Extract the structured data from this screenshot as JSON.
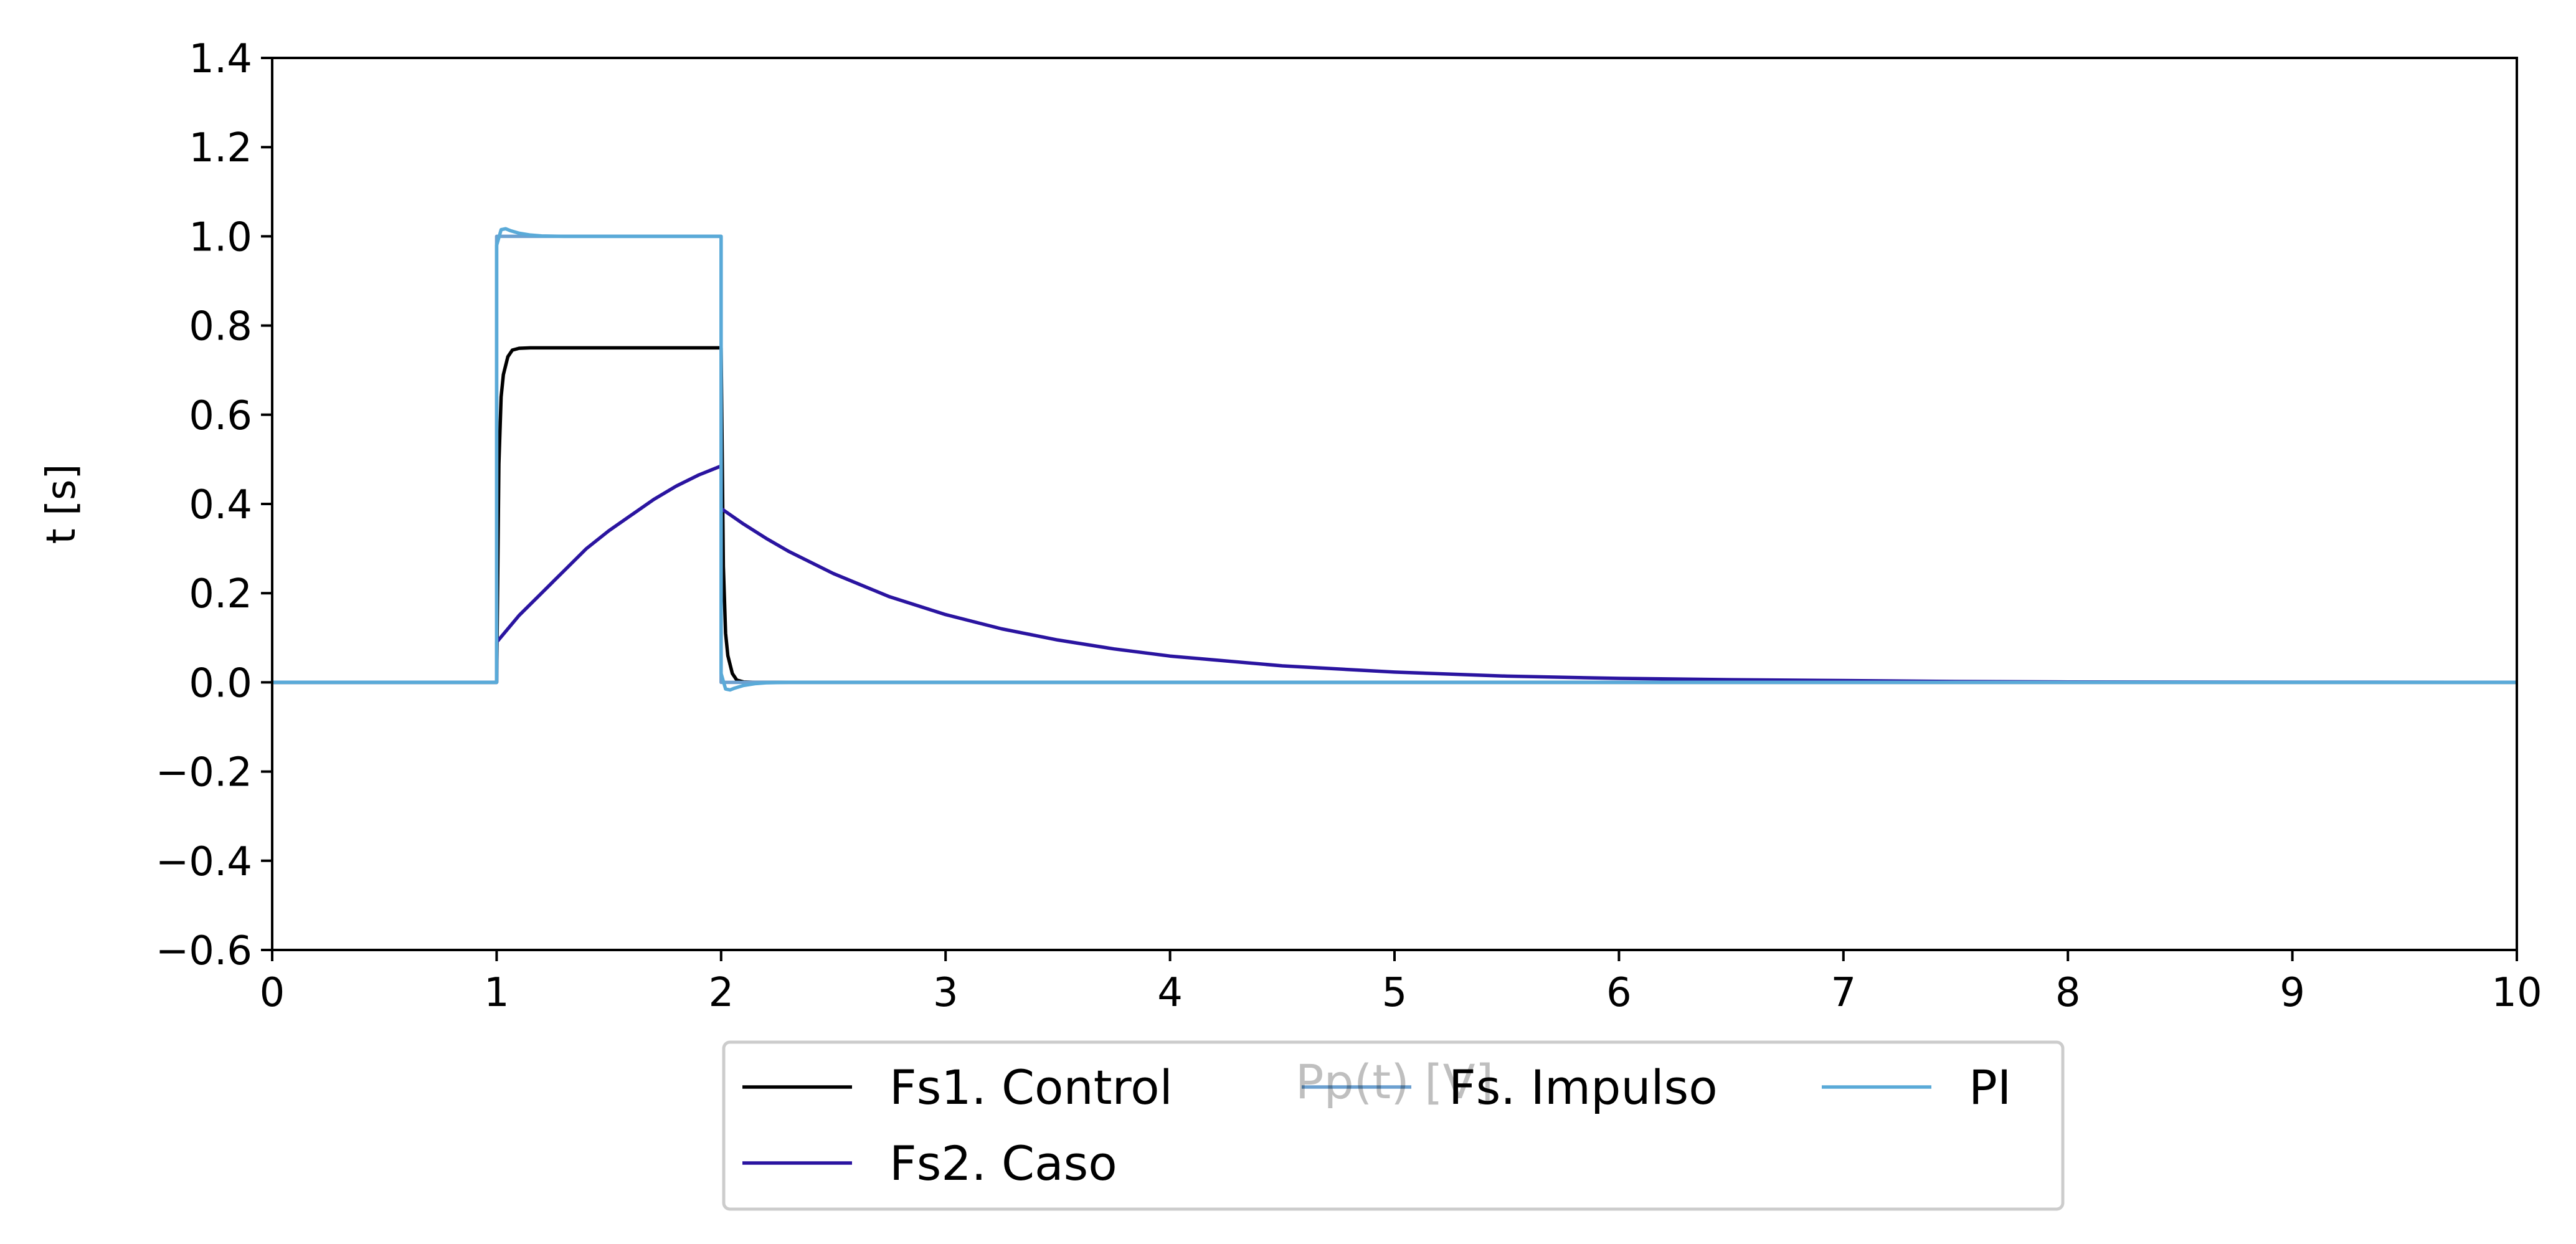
{
  "chart_data": {
    "type": "line",
    "title": "",
    "xlabel": "Pp(t) [V]",
    "ylabel": "t [s]",
    "xlim": [
      0,
      10
    ],
    "ylim": [
      -0.6,
      1.4
    ],
    "xticks": [
      "0",
      "1",
      "2",
      "3",
      "4",
      "5",
      "6",
      "7",
      "8",
      "9",
      "10"
    ],
    "yticks": [
      "−0.6",
      "−0.4",
      "−0.2",
      "0.0",
      "0.2",
      "0.4",
      "0.6",
      "0.8",
      "1.0",
      "1.2",
      "1.4"
    ],
    "grid": false,
    "legend_position": "below center",
    "series": [
      {
        "name": "Fs1. Control",
        "color": "#000000",
        "x": [
          0,
          1.0,
          1.0,
          1.01,
          1.02,
          1.03,
          1.05,
          1.07,
          1.1,
          1.15,
          1.2,
          1.5,
          2.0,
          2.0,
          2.01,
          2.02,
          2.03,
          2.05,
          2.07,
          2.1,
          2.15,
          2.2,
          3,
          5,
          10
        ],
        "y": [
          0,
          0,
          0,
          0.49,
          0.64,
          0.69,
          0.73,
          0.745,
          0.749,
          0.75,
          0.75,
          0.75,
          0.75,
          0.75,
          0.26,
          0.11,
          0.06,
          0.02,
          0.005,
          0.001,
          0,
          0,
          0,
          0,
          0
        ]
      },
      {
        "name": "Fs2. Caso",
        "color": "#2a14a0",
        "x": [
          0,
          1.0,
          1.0,
          1.1,
          1.2,
          1.3,
          1.4,
          1.5,
          1.6,
          1.7,
          1.8,
          1.9,
          2.0,
          2.0,
          2.1,
          2.2,
          2.3,
          2.5,
          2.75,
          3.0,
          3.25,
          3.5,
          3.75,
          4.0,
          4.5,
          5.0,
          5.5,
          6.0,
          6.5,
          7.0,
          7.5,
          8.0,
          9.0,
          10.0
        ],
        "y": [
          0,
          0,
          0.09,
          0.15,
          0.2,
          0.25,
          0.3,
          0.34,
          0.375,
          0.41,
          0.44,
          0.465,
          0.485,
          0.39,
          0.355,
          0.323,
          0.294,
          0.244,
          0.192,
          0.152,
          0.12,
          0.095,
          0.075,
          0.059,
          0.037,
          0.023,
          0.014,
          0.009,
          0.006,
          0.004,
          0.002,
          0.001,
          0.0004,
          0.0001
        ]
      },
      {
        "name": "Fs. Impulso",
        "color": "#6ca0d0",
        "x": [
          0,
          1.0,
          1.0,
          2.0,
          2.0,
          10
        ],
        "y": [
          0,
          0,
          1.0,
          1.0,
          0,
          0
        ]
      },
      {
        "name": "PI",
        "color": "#5aaad8",
        "x": [
          0,
          1.0,
          1.0,
          1.02,
          1.04,
          1.06,
          1.1,
          1.15,
          1.2,
          1.3,
          1.5,
          2.0,
          2.0,
          2.02,
          2.04,
          2.06,
          2.1,
          2.15,
          2.2,
          2.3,
          2.5,
          10
        ],
        "y": [
          0,
          0,
          0.98,
          1.015,
          1.017,
          1.013,
          1.007,
          1.003,
          1.001,
          1.0,
          1.0,
          1.0,
          0.02,
          -0.015,
          -0.017,
          -0.013,
          -0.007,
          -0.003,
          -0.001,
          0,
          0,
          0
        ]
      }
    ]
  }
}
